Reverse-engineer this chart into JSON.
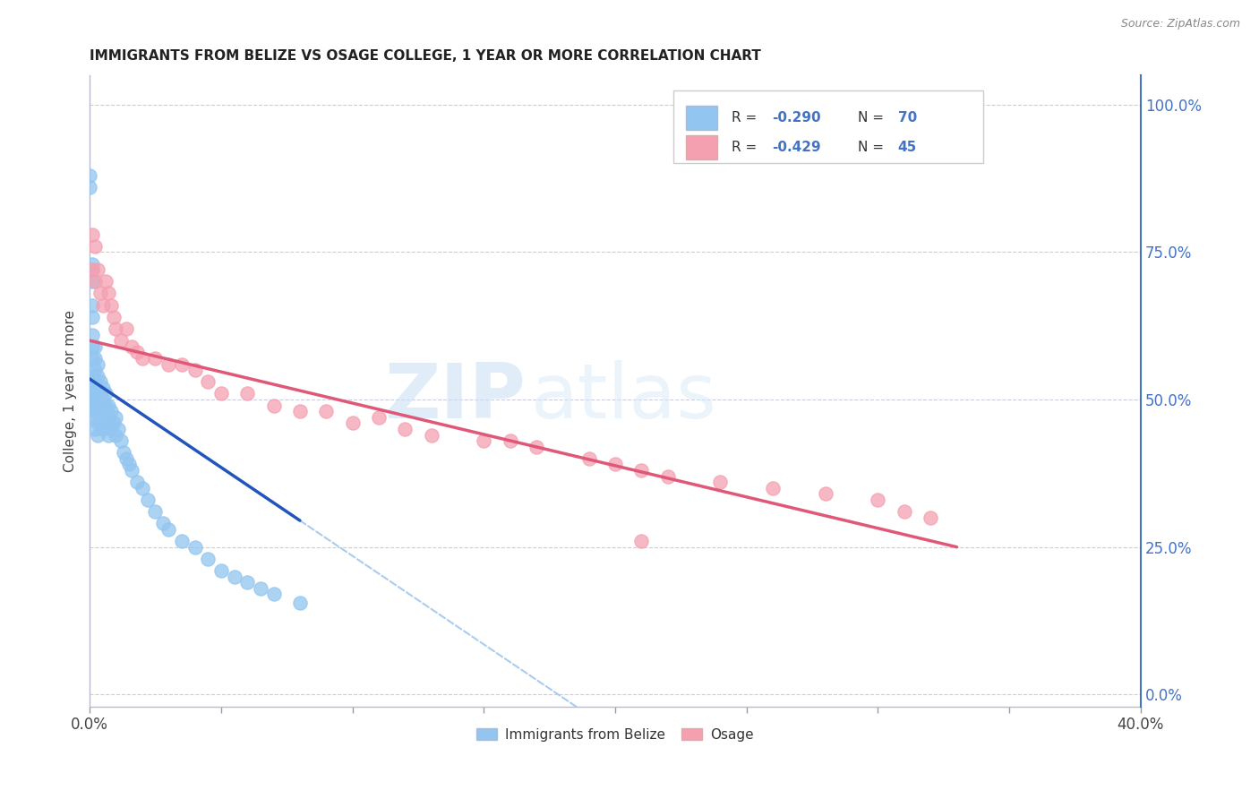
{
  "title": "IMMIGRANTS FROM BELIZE VS OSAGE COLLEGE, 1 YEAR OR MORE CORRELATION CHART",
  "source_text": "Source: ZipAtlas.com",
  "ylabel": "College, 1 year or more",
  "right_yticklabels": [
    "0.0%",
    "25.0%",
    "50.0%",
    "75.0%",
    "100.0%"
  ],
  "right_ytick_vals": [
    0.0,
    0.25,
    0.5,
    0.75,
    1.0
  ],
  "legend_label1": "Immigrants from Belize",
  "legend_label2": "Osage",
  "color_blue": "#92C5F0",
  "color_pink": "#F4A0B0",
  "color_blue_line": "#2255BB",
  "color_pink_line": "#E05878",
  "color_dashed": "#AACCEE",
  "watermark_zip": "ZIP",
  "watermark_atlas": "atlas",
  "xlim": [
    0.0,
    0.4
  ],
  "ylim": [
    -0.02,
    1.05
  ],
  "figsize": [
    14.06,
    8.92
  ],
  "dpi": 100,
  "blue_x": [
    0.0,
    0.0,
    0.001,
    0.001,
    0.001,
    0.001,
    0.001,
    0.001,
    0.001,
    0.001,
    0.001,
    0.001,
    0.001,
    0.001,
    0.002,
    0.002,
    0.002,
    0.002,
    0.002,
    0.002,
    0.002,
    0.002,
    0.002,
    0.003,
    0.003,
    0.003,
    0.003,
    0.003,
    0.003,
    0.003,
    0.004,
    0.004,
    0.004,
    0.004,
    0.005,
    0.005,
    0.005,
    0.005,
    0.006,
    0.006,
    0.006,
    0.007,
    0.007,
    0.007,
    0.008,
    0.008,
    0.009,
    0.01,
    0.01,
    0.011,
    0.012,
    0.013,
    0.014,
    0.015,
    0.016,
    0.018,
    0.02,
    0.022,
    0.025,
    0.028,
    0.03,
    0.035,
    0.04,
    0.045,
    0.05,
    0.055,
    0.06,
    0.065,
    0.07,
    0.08
  ],
  "blue_y": [
    0.88,
    0.86,
    0.73,
    0.72,
    0.7,
    0.66,
    0.64,
    0.61,
    0.59,
    0.57,
    0.54,
    0.52,
    0.5,
    0.48,
    0.59,
    0.57,
    0.55,
    0.53,
    0.51,
    0.5,
    0.49,
    0.47,
    0.45,
    0.56,
    0.54,
    0.52,
    0.5,
    0.48,
    0.46,
    0.44,
    0.53,
    0.51,
    0.49,
    0.46,
    0.52,
    0.5,
    0.48,
    0.45,
    0.51,
    0.49,
    0.46,
    0.49,
    0.47,
    0.44,
    0.48,
    0.45,
    0.46,
    0.47,
    0.44,
    0.45,
    0.43,
    0.41,
    0.4,
    0.39,
    0.38,
    0.36,
    0.35,
    0.33,
    0.31,
    0.29,
    0.28,
    0.26,
    0.25,
    0.23,
    0.21,
    0.2,
    0.19,
    0.18,
    0.17,
    0.155
  ],
  "pink_x": [
    0.001,
    0.001,
    0.002,
    0.002,
    0.003,
    0.004,
    0.005,
    0.006,
    0.007,
    0.008,
    0.009,
    0.01,
    0.012,
    0.014,
    0.016,
    0.018,
    0.02,
    0.025,
    0.03,
    0.035,
    0.04,
    0.045,
    0.05,
    0.06,
    0.07,
    0.08,
    0.09,
    0.1,
    0.11,
    0.12,
    0.13,
    0.15,
    0.16,
    0.17,
    0.19,
    0.2,
    0.21,
    0.22,
    0.24,
    0.26,
    0.28,
    0.3,
    0.31,
    0.32,
    0.21
  ],
  "pink_y": [
    0.78,
    0.72,
    0.76,
    0.7,
    0.72,
    0.68,
    0.66,
    0.7,
    0.68,
    0.66,
    0.64,
    0.62,
    0.6,
    0.62,
    0.59,
    0.58,
    0.57,
    0.57,
    0.56,
    0.56,
    0.55,
    0.53,
    0.51,
    0.51,
    0.49,
    0.48,
    0.48,
    0.46,
    0.47,
    0.45,
    0.44,
    0.43,
    0.43,
    0.42,
    0.4,
    0.39,
    0.38,
    0.37,
    0.36,
    0.35,
    0.34,
    0.33,
    0.31,
    0.3,
    0.26
  ],
  "blue_line_x0": 0.0,
  "blue_line_x1": 0.08,
  "blue_line_y0": 0.535,
  "blue_line_y1": 0.295,
  "dash_line_x0": 0.08,
  "dash_line_x1": 0.38,
  "pink_line_x0": 0.0,
  "pink_line_x1": 0.33,
  "pink_line_y0": 0.6,
  "pink_line_y1": 0.25
}
